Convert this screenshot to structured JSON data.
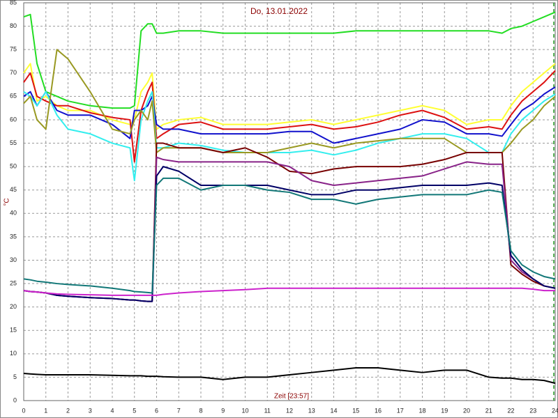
{
  "chart_data": {
    "type": "line",
    "title": "Do, 13.01.2022",
    "ylabel": "°C",
    "xlabel": "Zeit [23:57]",
    "xlim": [
      0,
      24
    ],
    "ylim": [
      0,
      85
    ],
    "xticks": [
      0,
      1,
      2,
      3,
      4,
      5,
      6,
      7,
      8,
      9,
      10,
      11,
      12,
      13,
      14,
      15,
      16,
      17,
      18,
      19,
      20,
      21,
      22,
      23,
      24
    ],
    "yticks": [
      0,
      5,
      10,
      15,
      20,
      25,
      30,
      35,
      40,
      45,
      50,
      55,
      60,
      65,
      70,
      75,
      80,
      85
    ],
    "grid": true,
    "x": [
      0,
      0.3,
      0.6,
      1,
      1.5,
      2,
      3,
      4,
      4.8,
      5,
      5.3,
      5.6,
      5.8,
      6,
      6.3,
      7,
      8,
      9,
      10,
      11,
      12,
      13,
      14,
      15,
      16,
      17,
      18,
      19,
      20,
      21,
      21.6,
      22,
      22.5,
      23,
      23.5,
      24
    ],
    "series": [
      {
        "color": "#22dd22",
        "values": [
          82,
          82.5,
          72,
          66,
          65,
          64,
          63,
          62.5,
          62.5,
          63,
          79,
          80.5,
          80.5,
          78.5,
          78.5,
          79,
          79,
          78.5,
          78.5,
          78.5,
          78.5,
          78.5,
          78.5,
          79,
          79,
          79,
          79,
          79,
          79,
          79,
          78.5,
          79.5,
          80,
          81,
          82,
          83
        ]
      },
      {
        "color": "#ffff33",
        "values": [
          70,
          72,
          64,
          65,
          63,
          62,
          62,
          60,
          59,
          60,
          66,
          68,
          70,
          58,
          59,
          60,
          60.5,
          59,
          59,
          59,
          59.5,
          60,
          59,
          60,
          61,
          62,
          63,
          62,
          59,
          60,
          60,
          63,
          66,
          68,
          70,
          72
        ]
      },
      {
        "color": "#dd1111",
        "values": [
          68,
          70,
          65,
          64,
          63,
          63,
          61.5,
          60.5,
          60,
          51,
          62,
          66,
          68,
          56,
          57,
          59,
          59.5,
          58,
          58,
          58,
          58.5,
          59,
          58,
          58.5,
          59.5,
          61,
          62,
          60.5,
          58,
          58.5,
          58,
          61,
          64,
          66,
          68,
          70.5
        ]
      },
      {
        "color": "#1111cc",
        "values": [
          65,
          66,
          63,
          66,
          62,
          61,
          61,
          59,
          56,
          62,
          62,
          63,
          65,
          59,
          58,
          58,
          57,
          57,
          57,
          57,
          57.5,
          57.5,
          55,
          56,
          57,
          58,
          60,
          59.5,
          57,
          57,
          56.5,
          59,
          62,
          63.5,
          65.5,
          67
        ]
      },
      {
        "color": "#33eeee",
        "values": [
          66,
          65,
          63,
          66,
          61,
          58,
          57,
          55,
          54,
          47,
          60,
          64,
          66,
          54,
          54,
          55,
          54.5,
          53.5,
          53,
          53,
          53,
          53.5,
          52.5,
          53.5,
          55,
          56,
          57,
          57,
          56,
          53,
          53,
          57,
          60,
          62,
          64,
          65.5
        ]
      },
      {
        "color": "#999922",
        "values": [
          63.5,
          65,
          60,
          58,
          75,
          73,
          66,
          58,
          57,
          60,
          62,
          60,
          64,
          53,
          54,
          54,
          54,
          53,
          53,
          53,
          54,
          55,
          54,
          55,
          55.5,
          56,
          56,
          56,
          53,
          53,
          53,
          55,
          58,
          60,
          63,
          65
        ]
      },
      {
        "color": "#770000",
        "values": [
          23.5,
          23.3,
          23.2,
          23,
          22.5,
          22.3,
          22,
          21.8,
          21.5,
          21.5,
          21.3,
          21.2,
          21.2,
          55,
          55,
          54,
          54,
          53,
          54,
          52,
          49,
          48.5,
          49.5,
          50,
          50,
          50,
          50.5,
          51.5,
          53,
          53,
          53,
          29,
          27,
          25.5,
          24.5,
          24
        ]
      },
      {
        "color": "#882288",
        "values": [
          23.5,
          23.3,
          23.2,
          23,
          22.5,
          22.3,
          22,
          21.8,
          21.5,
          21.5,
          21.3,
          21.2,
          21.2,
          52,
          51.5,
          51,
          51,
          51,
          51,
          51,
          50,
          47,
          46,
          46.5,
          47,
          47.5,
          48,
          49.5,
          51,
          50.5,
          50.5,
          30,
          27.5,
          26,
          24.5,
          24
        ]
      },
      {
        "color": "#000066",
        "values": [
          23.5,
          23.3,
          23.2,
          23,
          22.5,
          22.3,
          22,
          21.8,
          21.5,
          21.5,
          21.3,
          21.2,
          21.2,
          48,
          50,
          49,
          46,
          46,
          46,
          46,
          45,
          44,
          44,
          45,
          45,
          45.5,
          46,
          46,
          46,
          46.5,
          46,
          31,
          28,
          26,
          24.5,
          24
        ]
      },
      {
        "color": "#117777",
        "values": [
          26,
          25.8,
          25.5,
          25.3,
          25,
          24.8,
          24.5,
          24,
          23.5,
          23.3,
          23.2,
          23.1,
          23,
          46,
          47.5,
          47.5,
          45,
          46,
          46,
          45,
          44.5,
          43,
          43,
          42,
          43,
          43.5,
          44,
          44,
          44,
          45,
          44.5,
          32,
          29,
          27.5,
          26.5,
          26
        ]
      },
      {
        "color": "#cc22cc",
        "values": [
          23.5,
          23.3,
          23.2,
          23,
          22.8,
          22.7,
          22.6,
          22.5,
          22.5,
          22.5,
          22.5,
          22.5,
          22.5,
          22.5,
          22.7,
          23,
          23.3,
          23.5,
          23.7,
          24,
          24,
          24,
          24,
          24,
          24,
          24,
          24,
          24,
          24,
          24,
          24,
          24,
          24,
          23.8,
          23.5,
          23.5
        ]
      },
      {
        "color": "#000000",
        "values": [
          5.8,
          5.7,
          5.6,
          5.5,
          5.5,
          5.5,
          5.5,
          5.4,
          5.3,
          5.3,
          5.3,
          5.2,
          5.2,
          5.2,
          5.1,
          5,
          5,
          4.5,
          5,
          5,
          5.5,
          6,
          6.5,
          7,
          7,
          6.5,
          6,
          6.5,
          6.5,
          5,
          4.8,
          4.8,
          4.5,
          4.5,
          4.3,
          3.7
        ]
      }
    ]
  }
}
